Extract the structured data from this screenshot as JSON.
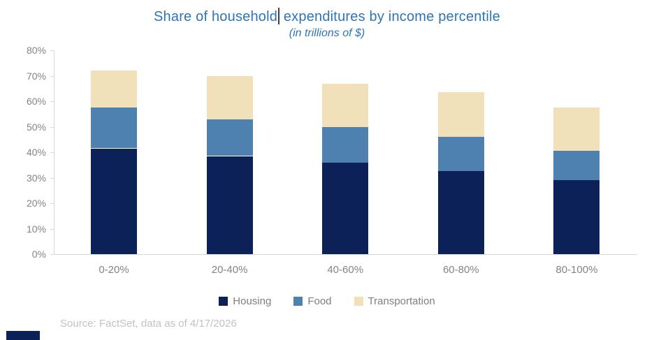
{
  "title": {
    "before_cursor": "Share of household",
    "after_cursor": " expenditures by income percentile",
    "subtitle": "(in trillions of $)"
  },
  "source": "Source: FactSet, data as of 4/17/2026",
  "colors": {
    "title_text": "#2e75b6",
    "housing": "#0d2159",
    "food": "#4e81b0",
    "transportation": "#f1e1bb",
    "axis_text": "#848484",
    "legend_text": "#7f7f7f",
    "source_text": "#c2c2c2",
    "axis_line": "#d9d9d9",
    "text_cursor": "#3f3f3f"
  },
  "chart_data": {
    "type": "bar",
    "stacked": true,
    "title": "Share of household expenditures by income percentile",
    "subtitle": "(in trillions of $)",
    "categories": [
      "0-20%",
      "20-40%",
      "40-60%",
      "60-80%",
      "80-100%"
    ],
    "series": [
      {
        "name": "Housing",
        "color": "#0d2159",
        "values": [
          41.5,
          38.5,
          36.0,
          32.5,
          29.0
        ]
      },
      {
        "name": "Food",
        "color": "#4e81b0",
        "values": [
          16.0,
          14.5,
          14.0,
          13.5,
          11.5
        ]
      },
      {
        "name": "Transportation",
        "color": "#f1e1bb",
        "values": [
          14.5,
          17.0,
          17.0,
          17.5,
          17.0
        ]
      }
    ],
    "stack_totals": [
      72.0,
      70.0,
      67.0,
      63.5,
      57.5
    ],
    "ylabel": "",
    "xlabel": "",
    "ylim": [
      0,
      80
    ],
    "y_tick_step": 10,
    "y_tick_labels": [
      "0%",
      "10%",
      "20%",
      "30%",
      "40%",
      "50%",
      "60%",
      "70%",
      "80%"
    ],
    "grid": false,
    "legend_position": "bottom"
  },
  "legend": {
    "items": [
      "Housing",
      "Food",
      "Transportation"
    ]
  }
}
